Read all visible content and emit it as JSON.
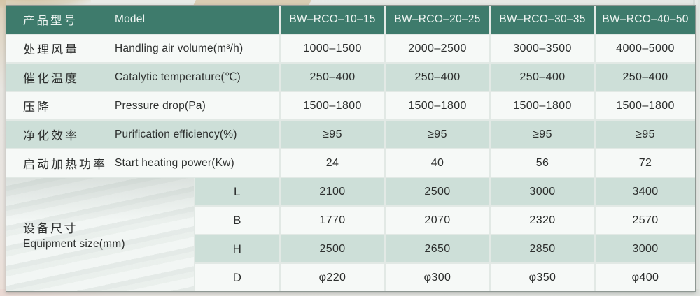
{
  "table": {
    "header": {
      "label_zh": "产品型号",
      "label_en": "Model",
      "models": [
        "BW–RCO–10–15",
        "BW–RCO–20–25",
        "BW–RCO–30–35",
        "BW–RCO–40–50"
      ]
    },
    "rows": [
      {
        "zh": "处理风量",
        "en": "Handling air volume(m³/h)",
        "values": [
          "1000–1500",
          "2000–2500",
          "3000–3500",
          "4000–5000"
        ]
      },
      {
        "zh": "催化温度",
        "en": "Catalytic temperature(℃)",
        "values": [
          "250–400",
          "250–400",
          "250–400",
          "250–400"
        ]
      },
      {
        "zh": "压降",
        "en": "Pressure drop(Pa)",
        "values": [
          "1500–1800",
          "1500–1800",
          "1500–1800",
          "1500–1800"
        ]
      },
      {
        "zh": "净化效率",
        "en": "Purification efficiency(%)",
        "values": [
          "≥95",
          "≥95",
          "≥95",
          "≥95"
        ]
      },
      {
        "zh": "启动加热功率",
        "en": "Start heating power(Kw)",
        "values": [
          "24",
          "40",
          "56",
          "72"
        ]
      }
    ],
    "equipment": {
      "zh": "设备尺寸",
      "en": "Equipment size(mm)",
      "subrows": [
        {
          "label": "L",
          "values": [
            "2100",
            "2500",
            "3000",
            "3400"
          ]
        },
        {
          "label": "B",
          "values": [
            "1770",
            "2070",
            "2320",
            "2570"
          ]
        },
        {
          "label": "H",
          "values": [
            "2500",
            "2650",
            "2850",
            "3000"
          ]
        },
        {
          "label": "D",
          "values": [
            "φ220",
            "φ300",
            "φ350",
            "φ400"
          ]
        }
      ]
    },
    "colors": {
      "header_green": "#3e7b6c",
      "row_green": "#cddfd8",
      "row_white": "#f6f9f7"
    }
  }
}
